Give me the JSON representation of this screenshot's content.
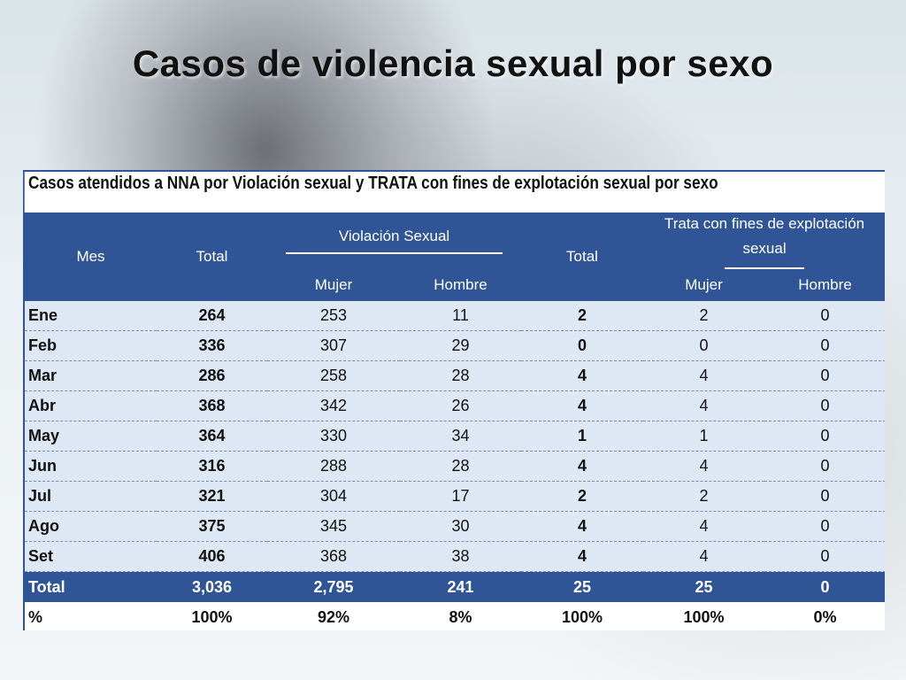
{
  "slide": {
    "title": "Casos de violencia sexual por sexo"
  },
  "table": {
    "caption": "Casos atendidos a NNA por Violación sexual y TRATA con fines de explotación sexual por sexo",
    "headers": {
      "mes": "Mes",
      "total1": "Total",
      "violacion": "Violación Sexual",
      "total2": "Total",
      "trata_line1": "Trata con fines de explotación",
      "trata_line2": "sexual",
      "mujer1": "Mujer",
      "hombre1": "Hombre",
      "mujer2": "Mujer",
      "hombre2": "Hombre"
    },
    "rows": [
      {
        "mes": "Ene",
        "total": "264",
        "vs_mujer": "253",
        "vs_hombre": "11",
        "tr_total": "2",
        "tr_mujer": "2",
        "tr_hombre": "0"
      },
      {
        "mes": "Feb",
        "total": "336",
        "vs_mujer": "307",
        "vs_hombre": "29",
        "tr_total": "0",
        "tr_mujer": "0",
        "tr_hombre": "0"
      },
      {
        "mes": "Mar",
        "total": "286",
        "vs_mujer": "258",
        "vs_hombre": "28",
        "tr_total": "4",
        "tr_mujer": "4",
        "tr_hombre": "0"
      },
      {
        "mes": "Abr",
        "total": "368",
        "vs_mujer": "342",
        "vs_hombre": "26",
        "tr_total": "4",
        "tr_mujer": "4",
        "tr_hombre": "0"
      },
      {
        "mes": "May",
        "total": "364",
        "vs_mujer": "330",
        "vs_hombre": "34",
        "tr_total": "1",
        "tr_mujer": "1",
        "tr_hombre": "0"
      },
      {
        "mes": "Jun",
        "total": "316",
        "vs_mujer": "288",
        "vs_hombre": "28",
        "tr_total": "4",
        "tr_mujer": "4",
        "tr_hombre": "0"
      },
      {
        "mes": "Jul",
        "total": "321",
        "vs_mujer": "304",
        "vs_hombre": "17",
        "tr_total": "2",
        "tr_mujer": "2",
        "tr_hombre": "0"
      },
      {
        "mes": "Ago",
        "total": "375",
        "vs_mujer": "345",
        "vs_hombre": "30",
        "tr_total": "4",
        "tr_mujer": "4",
        "tr_hombre": "0"
      },
      {
        "mes": "Set",
        "total": "406",
        "vs_mujer": "368",
        "vs_hombre": "38",
        "tr_total": "4",
        "tr_mujer": "4",
        "tr_hombre": "0"
      }
    ],
    "total_row": {
      "mes": "Total",
      "total": "3,036",
      "vs_mujer": "2,795",
      "vs_hombre": "241",
      "tr_total": "25",
      "tr_mujer": "25",
      "tr_hombre": "0"
    },
    "pct_row": {
      "mes": "%",
      "total": "100%",
      "vs_mujer": "92%",
      "vs_hombre": "8%",
      "tr_total": "100%",
      "tr_mujer": "100%",
      "tr_hombre": "0%"
    }
  },
  "colors": {
    "header_blue": "#2f5597",
    "row_light": "#dde8f4"
  }
}
